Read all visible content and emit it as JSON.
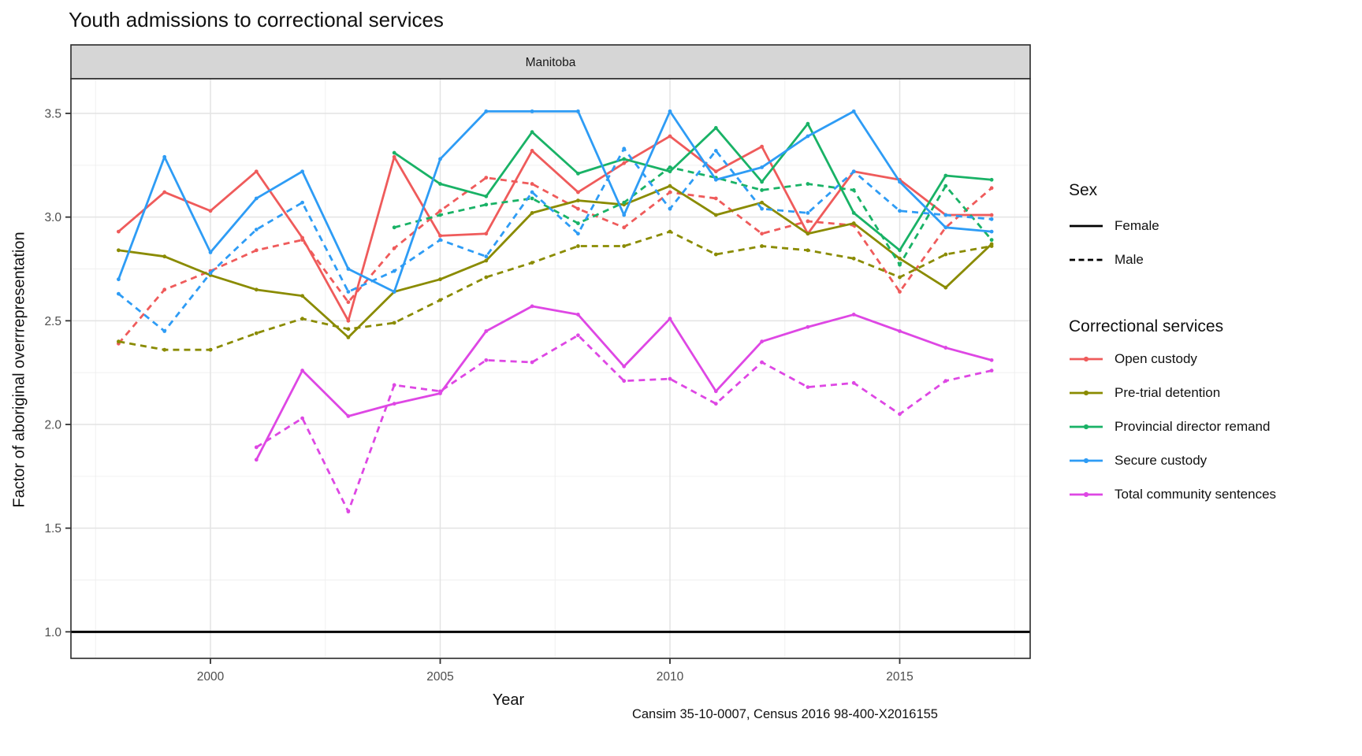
{
  "chart_data": {
    "type": "line",
    "title": "Youth admissions to correctional services",
    "facet_label": "Manitoba",
    "xlabel": "Year",
    "ylabel": "Factor of aboriginal overrrepresentation",
    "caption": "Cansim 35-10-0007, Census 2016 98-400-X2016155",
    "x_ticks": [
      2000,
      2005,
      2010,
      2015
    ],
    "x_minor": [
      1997.5,
      2002.5,
      2007.5,
      2012.5,
      2017.5
    ],
    "y_ticks": [
      1.0,
      1.5,
      2.0,
      2.5,
      3.0,
      3.5
    ],
    "y_minor": [
      1.25,
      1.75,
      2.25,
      2.75,
      3.25
    ],
    "xlim": [
      1996.96,
      2017.84
    ],
    "ylim": [
      0.87,
      3.67
    ],
    "reference_line_y": 1.0,
    "grid": true,
    "colors": {
      "major_grid": "#E3E3E3",
      "minor_grid": "#F0F0F0",
      "panel_border": "#2A2A2A",
      "strip_fill": "#D6D6D6",
      "tick_label": "#4D4D4D",
      "reference_line": "#000000"
    },
    "legend": {
      "sex_title": "Sex",
      "sex_items": [
        {
          "label": "Female",
          "dash": "solid"
        },
        {
          "label": "Male",
          "dash": "dashed"
        }
      ],
      "services_title": "Correctional services",
      "service_items": [
        {
          "label": "Open custody",
          "color": "#EF5B5B"
        },
        {
          "label": "Pre-trial detention",
          "color": "#8A8B00"
        },
        {
          "label": "Provincial director remand",
          "color": "#19B266"
        },
        {
          "label": "Secure custody",
          "color": "#2E9CF5"
        },
        {
          "label": "Total community sentences",
          "color": "#DE47E4"
        }
      ]
    },
    "series": [
      {
        "service": "Open custody",
        "sex": "Male",
        "color": "#EF5B5B",
        "dash": "dashed",
        "years": [
          1998,
          1999,
          2000,
          2001,
          2002,
          2003,
          2004,
          2005,
          2006,
          2007,
          2008,
          2009,
          2010,
          2011,
          2012,
          2013,
          2014,
          2015,
          2016,
          2017
        ],
        "values": [
          2.39,
          2.65,
          2.74,
          2.84,
          2.89,
          2.59,
          2.85,
          3.03,
          3.19,
          3.16,
          3.04,
          2.95,
          3.12,
          3.09,
          2.92,
          2.98,
          2.96,
          2.64,
          2.95,
          3.14
        ]
      },
      {
        "service": "Open custody",
        "sex": "Female",
        "color": "#EF5B5B",
        "dash": "solid",
        "years": [
          1998,
          1999,
          2000,
          2001,
          2002,
          2003,
          2004,
          2005,
          2006,
          2007,
          2008,
          2009,
          2010,
          2011,
          2012,
          2013,
          2014,
          2015,
          2016,
          2017
        ],
        "values": [
          2.93,
          3.12,
          3.03,
          3.22,
          2.9,
          2.5,
          3.29,
          2.91,
          2.92,
          3.32,
          3.12,
          3.26,
          3.39,
          3.22,
          3.34,
          2.92,
          3.22,
          3.18,
          3.01,
          3.01
        ]
      },
      {
        "service": "Pre-trial detention",
        "sex": "Male",
        "color": "#8A8B00",
        "dash": "dashed",
        "years": [
          1998,
          1999,
          2000,
          2001,
          2002,
          2003,
          2004,
          2005,
          2006,
          2007,
          2008,
          2009,
          2010,
          2011,
          2012,
          2013,
          2014,
          2015,
          2016,
          2017
        ],
        "values": [
          2.4,
          2.36,
          2.36,
          2.44,
          2.51,
          2.46,
          2.49,
          2.6,
          2.71,
          2.78,
          2.86,
          2.86,
          2.93,
          2.82,
          2.86,
          2.84,
          2.8,
          2.71,
          2.82,
          2.86
        ]
      },
      {
        "service": "Pre-trial detention",
        "sex": "Female",
        "color": "#8A8B00",
        "dash": "solid",
        "years": [
          1998,
          1999,
          2000,
          2001,
          2002,
          2003,
          2004,
          2005,
          2006,
          2007,
          2008,
          2009,
          2010,
          2011,
          2012,
          2013,
          2014,
          2015,
          2016,
          2017
        ],
        "values": [
          2.84,
          2.81,
          2.72,
          2.65,
          2.62,
          2.42,
          2.64,
          2.7,
          2.79,
          3.02,
          3.08,
          3.06,
          3.15,
          3.01,
          3.07,
          2.92,
          2.97,
          2.8,
          2.66,
          2.87
        ]
      },
      {
        "service": "Provincial director remand",
        "sex": "Male",
        "color": "#19B266",
        "dash": "dashed",
        "years": [
          2004,
          2005,
          2006,
          2007,
          2008,
          2009,
          2010,
          2011,
          2012,
          2013,
          2014,
          2015,
          2016,
          2017
        ],
        "values": [
          2.95,
          3.01,
          3.06,
          3.09,
          2.97,
          3.07,
          3.24,
          3.19,
          3.13,
          3.16,
          3.13,
          2.77,
          3.15,
          2.89
        ]
      },
      {
        "service": "Provincial director remand",
        "sex": "Female",
        "color": "#19B266",
        "dash": "solid",
        "years": [
          2004,
          2005,
          2006,
          2007,
          2008,
          2009,
          2010,
          2011,
          2012,
          2013,
          2014,
          2015,
          2016,
          2017
        ],
        "values": [
          3.31,
          3.16,
          3.1,
          3.41,
          3.21,
          3.28,
          3.22,
          3.43,
          3.17,
          3.45,
          3.02,
          2.84,
          3.2,
          3.18
        ]
      },
      {
        "service": "Secure custody",
        "sex": "Male",
        "color": "#2E9CF5",
        "dash": "dashed",
        "years": [
          1998,
          1999,
          2000,
          2001,
          2002,
          2003,
          2004,
          2005,
          2006,
          2007,
          2008,
          2009,
          2010,
          2011,
          2012,
          2013,
          2014,
          2015,
          2016,
          2017
        ],
        "values": [
          2.63,
          2.45,
          2.73,
          2.94,
          3.07,
          2.64,
          2.74,
          2.89,
          2.81,
          3.12,
          2.92,
          3.33,
          3.04,
          3.32,
          3.04,
          3.02,
          3.22,
          3.03,
          3.01,
          2.99
        ]
      },
      {
        "service": "Secure custody",
        "sex": "Female",
        "color": "#2E9CF5",
        "dash": "solid",
        "years": [
          1998,
          1999,
          2000,
          2001,
          2002,
          2003,
          2004,
          2005,
          2006,
          2007,
          2008,
          2009,
          2010,
          2011,
          2012,
          2013,
          2014,
          2015,
          2016,
          2017
        ],
        "values": [
          2.7,
          3.29,
          2.83,
          3.09,
          3.22,
          2.75,
          2.64,
          3.28,
          3.51,
          3.51,
          3.51,
          3.01,
          3.51,
          3.18,
          3.24,
          3.39,
          3.51,
          3.17,
          2.95,
          2.93
        ]
      },
      {
        "service": "Total community sentences",
        "sex": "Male",
        "color": "#DE47E4",
        "dash": "dashed",
        "years": [
          2001,
          2002,
          2003,
          2004,
          2005,
          2006,
          2007,
          2008,
          2009,
          2010,
          2011,
          2012,
          2013,
          2014,
          2015,
          2016,
          2017
        ],
        "values": [
          1.89,
          2.03,
          1.58,
          2.19,
          2.16,
          2.31,
          2.3,
          2.43,
          2.21,
          2.22,
          2.1,
          2.3,
          2.18,
          2.2,
          2.05,
          2.21,
          2.26
        ]
      },
      {
        "service": "Total community sentences",
        "sex": "Female",
        "color": "#DE47E4",
        "dash": "solid",
        "years": [
          2001,
          2002,
          2003,
          2004,
          2005,
          2006,
          2007,
          2008,
          2009,
          2010,
          2011,
          2012,
          2013,
          2014,
          2015,
          2016,
          2017
        ],
        "values": [
          1.83,
          2.26,
          2.04,
          2.1,
          2.15,
          2.45,
          2.57,
          2.53,
          2.28,
          2.51,
          2.16,
          2.4,
          2.47,
          2.53,
          2.45,
          2.37,
          2.31
        ]
      }
    ]
  }
}
